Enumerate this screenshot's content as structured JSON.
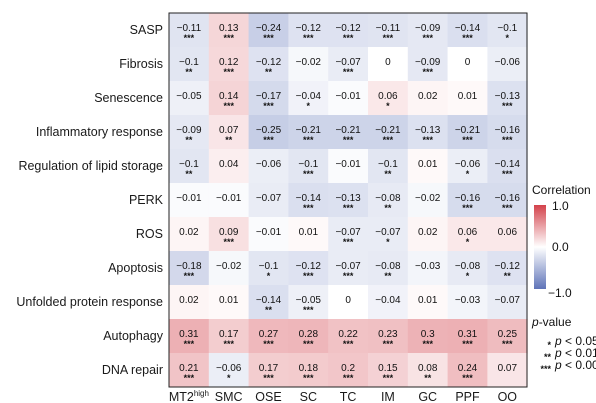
{
  "chart_data": {
    "type": "heatmap",
    "rows": [
      "SASP",
      "Fibrosis",
      "Senescence",
      "Inflammatory response",
      "Regulation of lipid storage",
      "PERK",
      "ROS",
      "Apoptosis",
      "Unfolded protein response",
      "Autophagy",
      "DNA repair"
    ],
    "columns": [
      "MT2",
      "SMC",
      "OSE",
      "SC",
      "TC",
      "IM",
      "GC",
      "PPF",
      "OO"
    ],
    "column_superscripts": {
      "MT2": "high"
    },
    "values": [
      [
        "−0.11",
        "0.13",
        "−0.24",
        "−0.12",
        "−0.12",
        "−0.11",
        "−0.09",
        "−0.14",
        "−0.1"
      ],
      [
        "−0.1",
        "0.12",
        "−0.12",
        "−0.02",
        "−0.07",
        "0",
        "−0.09",
        "0",
        "−0.06"
      ],
      [
        "−0.05",
        "0.14",
        "−0.17",
        "−0.04",
        "−0.01",
        "0.06",
        "0.02",
        "0.01",
        "−0.13"
      ],
      [
        "−0.09",
        "0.07",
        "−0.25",
        "−0.21",
        "−0.21",
        "−0.21",
        "−0.13",
        "−0.21",
        "−0.16"
      ],
      [
        "−0.1",
        "0.04",
        "−0.06",
        "−0.1",
        "−0.01",
        "−0.1",
        "0.01",
        "−0.06",
        "−0.14"
      ],
      [
        "−0.01",
        "−0.01",
        "−0.07",
        "−0.14",
        "−0.13",
        "−0.08",
        "−0.02",
        "−0.16",
        "−0.16"
      ],
      [
        "0.02",
        "0.09",
        "−0.01",
        "0.01",
        "−0.07",
        "−0.07",
        "0.02",
        "0.06",
        "0.06"
      ],
      [
        "−0.18",
        "−0.02",
        "−0.1",
        "−0.12",
        "−0.07",
        "−0.08",
        "−0.03",
        "−0.08",
        "−0.12"
      ],
      [
        "0.02",
        "0.01",
        "−0.14",
        "−0.05",
        "0",
        "−0.04",
        "0.01",
        "−0.03",
        "−0.07"
      ],
      [
        "0.31",
        "0.17",
        "0.27",
        "0.28",
        "0.22",
        "0.23",
        "0.3",
        "0.31",
        "0.25"
      ],
      [
        "0.21",
        "−0.06",
        "0.17",
        "0.18",
        "0.2",
        "0.15",
        "0.08",
        "0.24",
        "0.07"
      ]
    ],
    "significance": [
      [
        "***",
        "***",
        "***",
        "***",
        "***",
        "***",
        "***",
        "***",
        "*"
      ],
      [
        "**",
        "***",
        "**",
        "",
        "***",
        "",
        "***",
        "",
        ""
      ],
      [
        "",
        "***",
        "***",
        "*",
        "",
        "*",
        "",
        "",
        "***"
      ],
      [
        "**",
        "**",
        "***",
        "***",
        "***",
        "***",
        "***",
        "***",
        "***"
      ],
      [
        "**",
        "",
        "",
        "***",
        "",
        "**",
        "",
        "*",
        "***"
      ],
      [
        "",
        "",
        "",
        "***",
        "***",
        "**",
        "",
        "***",
        "***"
      ],
      [
        "",
        "***",
        "",
        "",
        "***",
        "*",
        "",
        "*",
        ""
      ],
      [
        "***",
        "",
        "*",
        "***",
        "***",
        "**",
        "",
        "*",
        "**"
      ],
      [
        "",
        "",
        "**",
        "***",
        "",
        "",
        "",
        "",
        ""
      ],
      [
        "***",
        "***",
        "***",
        "***",
        "***",
        "***",
        "***",
        "***",
        "***"
      ],
      [
        "***",
        "*",
        "***",
        "***",
        "***",
        "***",
        "**",
        "***",
        ""
      ]
    ],
    "color_scale": {
      "min": -1.0,
      "max": 1.0,
      "neg_color": "#5e73b8",
      "mid_color": "#ffffff",
      "pos_color": "#d3424b"
    }
  },
  "legend": {
    "title": "Correlation",
    "ticks": [
      "1.0",
      "0.0",
      "−1.0"
    ]
  },
  "pvalue_legend": {
    "title": "p-value",
    "title_prefix": "p",
    "title_suffix": "-value",
    "entries": [
      {
        "stars": "*",
        "p": "p",
        "text": " < 0.05"
      },
      {
        "stars": "**",
        "p": "p",
        "text": " < 0.01"
      },
      {
        "stars": "***",
        "p": "p",
        "text": " < 0.001"
      }
    ]
  }
}
